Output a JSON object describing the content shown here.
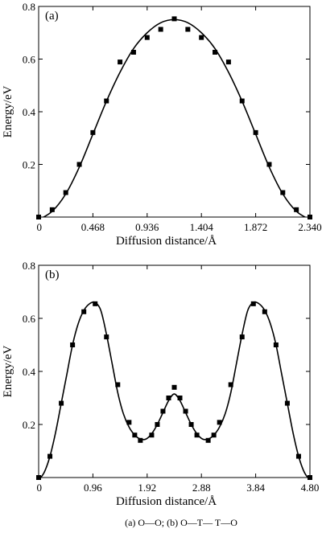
{
  "caption": "(a) O—O; (b) O—T— T—O",
  "chart_data": [
    {
      "type": "scatter",
      "panel_label": "(a)",
      "xlabel": "Diffusion distance/Å",
      "ylabel": "Energy/eV",
      "xlim": [
        0,
        2.34
      ],
      "ylim": [
        0,
        0.8
      ],
      "xticks": [
        "0",
        "0.468",
        "0.936",
        "1.404",
        "1.872",
        "2.340"
      ],
      "xtick_values": [
        0,
        0.468,
        0.936,
        1.404,
        1.872,
        2.34
      ],
      "yticks": [
        "0.2",
        "0.4",
        "0.6",
        "0.8"
      ],
      "ytick_values": [
        0.2,
        0.4,
        0.6,
        0.8
      ],
      "series": [
        {
          "kind": "markers",
          "x": [
            0,
            0.117,
            0.234,
            0.351,
            0.468,
            0.585,
            0.702,
            0.819,
            0.936,
            1.053,
            1.17,
            1.287,
            1.404,
            1.521,
            1.638,
            1.755,
            1.872,
            1.989,
            2.106,
            2.223,
            2.34
          ],
          "y": [
            0.0,
            0.028,
            0.093,
            0.2,
            0.321,
            0.441,
            0.589,
            0.626,
            0.682,
            0.713,
            0.753,
            0.713,
            0.682,
            0.626,
            0.589,
            0.441,
            0.321,
            0.2,
            0.093,
            0.028,
            0.0
          ]
        },
        {
          "kind": "fit-line",
          "x": [
            0,
            0.117,
            0.234,
            0.351,
            0.468,
            0.585,
            0.702,
            0.819,
            0.936,
            1.053,
            1.17,
            1.287,
            1.404,
            1.521,
            1.638,
            1.755,
            1.872,
            1.989,
            2.106,
            2.223,
            2.34
          ],
          "y": [
            -0.01,
            0.022,
            0.088,
            0.19,
            0.315,
            0.44,
            0.55,
            0.64,
            0.7,
            0.738,
            0.75,
            0.738,
            0.7,
            0.64,
            0.55,
            0.44,
            0.315,
            0.19,
            0.088,
            0.022,
            -0.01
          ]
        }
      ]
    },
    {
      "type": "scatter",
      "panel_label": "(b)",
      "xlabel": "Diffusion distance/Å",
      "ylabel": "Energy/eV",
      "xlim": [
        0,
        4.8
      ],
      "ylim": [
        0,
        0.8
      ],
      "xticks": [
        "0",
        "0.96",
        "1.92",
        "2.88",
        "3.84",
        "4.80"
      ],
      "xtick_values": [
        0,
        0.96,
        1.92,
        2.88,
        3.84,
        4.8
      ],
      "yticks": [
        "0.2",
        "0.4",
        "0.6",
        "0.8"
      ],
      "ytick_values": [
        0.2,
        0.4,
        0.6,
        0.8
      ],
      "series": [
        {
          "kind": "markers",
          "x": [
            0,
            0.2,
            0.4,
            0.6,
            0.8,
            1.0,
            1.2,
            1.4,
            1.6,
            1.7,
            1.8,
            2.0,
            2.1,
            2.2,
            2.3,
            2.4,
            2.5,
            2.6,
            2.7,
            2.8,
            3.0,
            3.1,
            3.2,
            3.4,
            3.6,
            3.8,
            4.0,
            4.2,
            4.4,
            4.6,
            4.8
          ],
          "y": [
            0.0,
            0.08,
            0.28,
            0.5,
            0.625,
            0.655,
            0.53,
            0.35,
            0.208,
            0.16,
            0.14,
            0.16,
            0.2,
            0.25,
            0.3,
            0.34,
            0.3,
            0.25,
            0.2,
            0.16,
            0.14,
            0.16,
            0.208,
            0.35,
            0.53,
            0.655,
            0.625,
            0.5,
            0.28,
            0.08,
            0.0
          ]
        },
        {
          "kind": "fit-line",
          "x": [
            0,
            0.1,
            0.2,
            0.3,
            0.4,
            0.5,
            0.6,
            0.7,
            0.8,
            0.9,
            1.0,
            1.1,
            1.2,
            1.3,
            1.4,
            1.5,
            1.6,
            1.7,
            1.8,
            1.9,
            2.0,
            2.1,
            2.2,
            2.3,
            2.4,
            2.5,
            2.6,
            2.7,
            2.8,
            2.9,
            3.0,
            3.1,
            3.2,
            3.3,
            3.4,
            3.5,
            3.6,
            3.7,
            3.8,
            3.9,
            4.0,
            4.1,
            4.2,
            4.3,
            4.4,
            4.5,
            4.6,
            4.7,
            4.8
          ],
          "y": [
            -0.01,
            0.02,
            0.08,
            0.17,
            0.28,
            0.39,
            0.5,
            0.58,
            0.63,
            0.655,
            0.66,
            0.63,
            0.54,
            0.43,
            0.32,
            0.24,
            0.19,
            0.16,
            0.145,
            0.145,
            0.165,
            0.2,
            0.245,
            0.29,
            0.315,
            0.29,
            0.245,
            0.2,
            0.165,
            0.145,
            0.145,
            0.16,
            0.19,
            0.24,
            0.32,
            0.43,
            0.54,
            0.63,
            0.66,
            0.655,
            0.63,
            0.58,
            0.5,
            0.39,
            0.28,
            0.17,
            0.08,
            0.02,
            -0.01
          ]
        }
      ]
    }
  ]
}
